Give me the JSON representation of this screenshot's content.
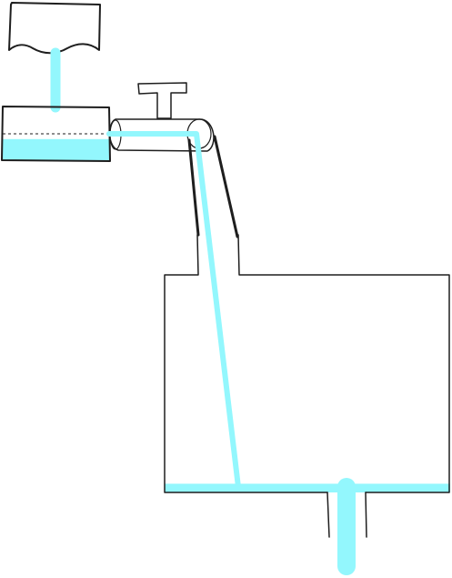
{
  "colors": {
    "water": "#93f7fd",
    "outline": "#1e1e1e",
    "background": "#ffffff"
  },
  "components": {
    "source_container": "wavy-bottom-reservoir",
    "feed_stream": "falling-water-stream",
    "inlet_basin": "rectangular-basin",
    "siphon_tap": "t-handle-valve",
    "siphon_tube": "bent-pipe",
    "receiving_tank": "large-tank",
    "outlet_drain": "bottom-drain-pipe"
  },
  "levels": {
    "inlet_basin_fill": 0.4,
    "receiving_tank_fill": 0.04
  }
}
